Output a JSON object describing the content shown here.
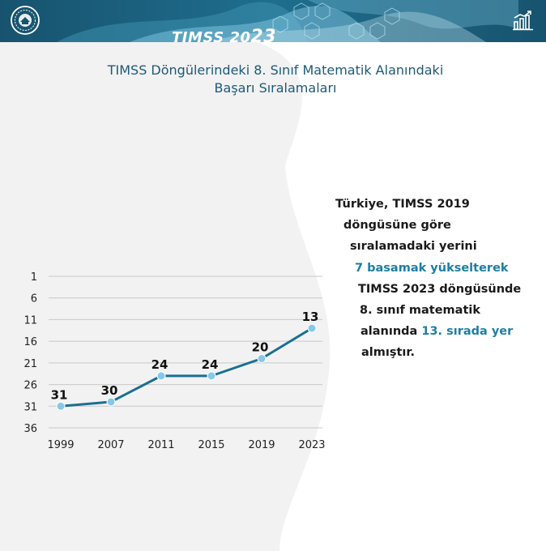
{
  "header": {
    "brand_prefix": "TIMSS 20",
    "brand_suffix": "23",
    "left_logo_icon": "ministry-seal-icon",
    "right_icon": "bar-chart-growth-icon",
    "colors": {
      "dark": "#17536e",
      "light": "#2b7c9a"
    }
  },
  "chart_data": {
    "type": "line",
    "title_lines": [
      "TIMSS Döngülerindeki 8. Sınıf Matematik Alanındaki",
      "Başarı Sıralamaları"
    ],
    "categories": [
      "1999",
      "2007",
      "2011",
      "2015",
      "2019",
      "2023"
    ],
    "series": [
      {
        "values": [
          31,
          30,
          24,
          24,
          20,
          13
        ]
      }
    ],
    "data_labels": [
      "31",
      "30",
      "24",
      "24",
      "20",
      "13"
    ],
    "y_ticks": [
      "1",
      "6",
      "11",
      "16",
      "21",
      "26",
      "31",
      "36"
    ],
    "y_tick_values": [
      1,
      6,
      11,
      16,
      21,
      26,
      31,
      36
    ],
    "ylim": [
      1,
      36
    ],
    "y_inverted": true,
    "grid": true,
    "colors": {
      "line": "#1a6f91",
      "marker": "#87c8e8",
      "grid": "#c8c8c8"
    }
  },
  "info": {
    "line1": "Türkiye, TIMSS 2019",
    "line2": "döngüsüne göre",
    "line3": "sıralamadaki yerini",
    "line4_hl": "7 basamak yükselterek",
    "line5": "TIMSS 2023 döngüsünde",
    "line6": "8. sınıf matematik",
    "line7_a": "alanında ",
    "line7_hl": "13. sırada yer",
    "line8": "almıştır."
  }
}
